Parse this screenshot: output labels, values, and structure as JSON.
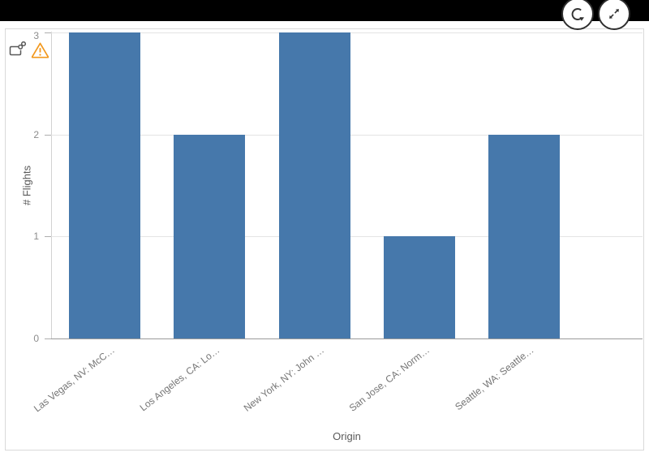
{
  "app": {
    "topbar_color": "#000000",
    "buttons": [
      {
        "id": "refresh",
        "icon": "refresh-icon"
      },
      {
        "id": "expand",
        "icon": "expand-icon"
      }
    ]
  },
  "card": {
    "border_color": "#d9d9d9",
    "icons": [
      "navigation-link",
      "warning"
    ],
    "warning_color": "#f2981d",
    "icon_gray": "#595959"
  },
  "chart_data": {
    "type": "bar",
    "title": "",
    "categories": [
      "Las Vegas, NV: McC…",
      "Los Angeles, CA: Lo…",
      "New York, NY: John …",
      "San Jose, CA: Norm…",
      "Seattle, WA: Seattle…"
    ],
    "values": [
      3,
      2,
      3,
      1,
      2
    ],
    "xlabel": "Origin",
    "ylabel": "# Flights",
    "ylim": [
      0,
      3
    ],
    "yticks": [
      0,
      1,
      2,
      3
    ],
    "bar_color": "#4678ab",
    "grid": true,
    "legend_position": "none",
    "x_tick_rotation_deg": -38
  }
}
